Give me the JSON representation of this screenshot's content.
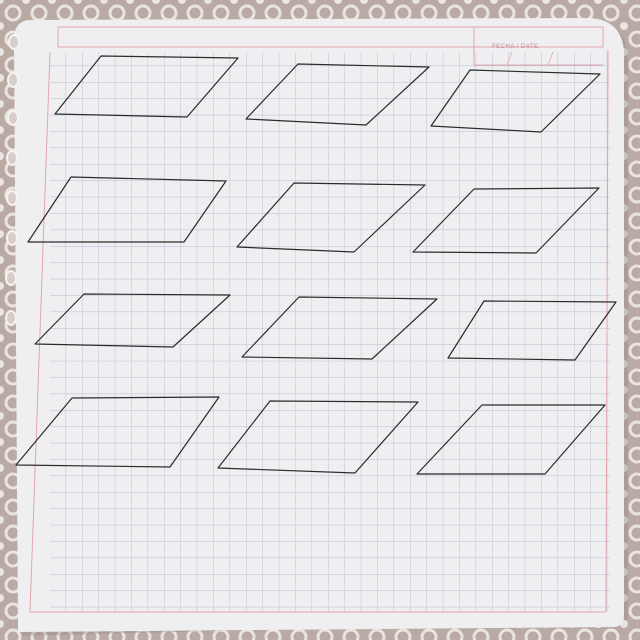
{
  "scene": {
    "description_tag": "photo",
    "paper_color": "#efeff1",
    "grid_color": "#aebcd3",
    "margin_line_color": "#e3a4ad",
    "ink_color": "#2b2b2b",
    "background_color": "#b9aaa4",
    "lace_color": "#f2efec"
  },
  "header": {
    "date_label": "FECHA / DATE"
  },
  "drawing": {
    "shape": "parallelogram",
    "rows": 4,
    "columns": 3,
    "count": 12
  }
}
